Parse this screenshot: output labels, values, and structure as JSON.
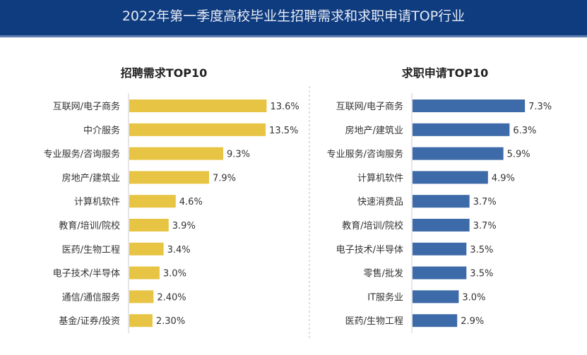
{
  "title": "2022年第一季度高校毕业生招聘需求和求职申请TOP行业",
  "chart_data": [
    {
      "type": "bar",
      "orientation": "horizontal",
      "title": "招聘需求TOP10",
      "color": "#e8c444",
      "categories": [
        "互联网/电子商务",
        "中介服务",
        "专业服务/咨询服务",
        "房地产/建筑业",
        "计算机软件",
        "教育/培训/院校",
        "医药/生物工程",
        "电子技术/半导体",
        "通信/通信服务",
        "基金/证券/投资"
      ],
      "values": [
        13.6,
        13.5,
        9.3,
        7.9,
        4.6,
        3.9,
        3.4,
        3.0,
        2.4,
        2.3
      ],
      "labels": [
        "13.6%",
        "13.5%",
        "9.3%",
        "7.9%",
        "4.6%",
        "3.9%",
        "3.4%",
        "3.0%",
        "2.40%",
        "2.30%"
      ],
      "grid": false
    },
    {
      "type": "bar",
      "orientation": "horizontal",
      "title": "求职申请TOP10",
      "color": "#3d6aa8",
      "categories": [
        "互联网/电子商务",
        "房地产/建筑业",
        "专业服务/咨询服务",
        "计算机软件",
        "快速消费品",
        "教育/培训/院校",
        "电子技术/半导体",
        "零售/批发",
        "IT服务业",
        "医药/生物工程"
      ],
      "values": [
        7.3,
        6.3,
        5.9,
        4.9,
        3.7,
        3.7,
        3.5,
        3.5,
        3.0,
        2.9
      ],
      "labels": [
        "7.3%",
        "6.3%",
        "5.9%",
        "4.9%",
        "3.7%",
        "3.7%",
        "3.5%",
        "3.5%",
        "3.0%",
        "2.9%"
      ],
      "grid": false
    }
  ]
}
